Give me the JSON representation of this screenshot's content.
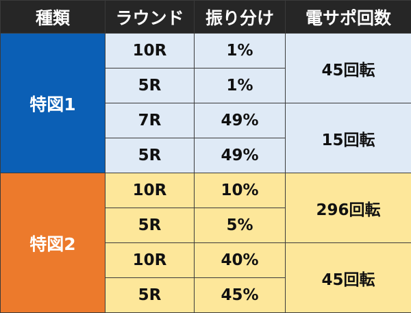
{
  "headers": [
    "種類",
    "ラウンド",
    "振り分け",
    "電サポ回数"
  ],
  "groups": [
    {
      "type": "特図1",
      "color": "#0b5fb5",
      "rows": [
        {
          "round": "10R",
          "share": "1%"
        },
        {
          "round": "5R",
          "share": "1%"
        },
        {
          "round": "7R",
          "share": "49%"
        },
        {
          "round": "5R",
          "share": "49%"
        }
      ],
      "support": [
        "45回転",
        "15回転"
      ]
    },
    {
      "type": "特図2",
      "color": "#ec7a2c",
      "rows": [
        {
          "round": "10R",
          "share": "10%"
        },
        {
          "round": "5R",
          "share": "5%"
        },
        {
          "round": "10R",
          "share": "40%"
        },
        {
          "round": "5R",
          "share": "45%"
        }
      ],
      "support": [
        "296回転",
        "45回転"
      ]
    }
  ]
}
